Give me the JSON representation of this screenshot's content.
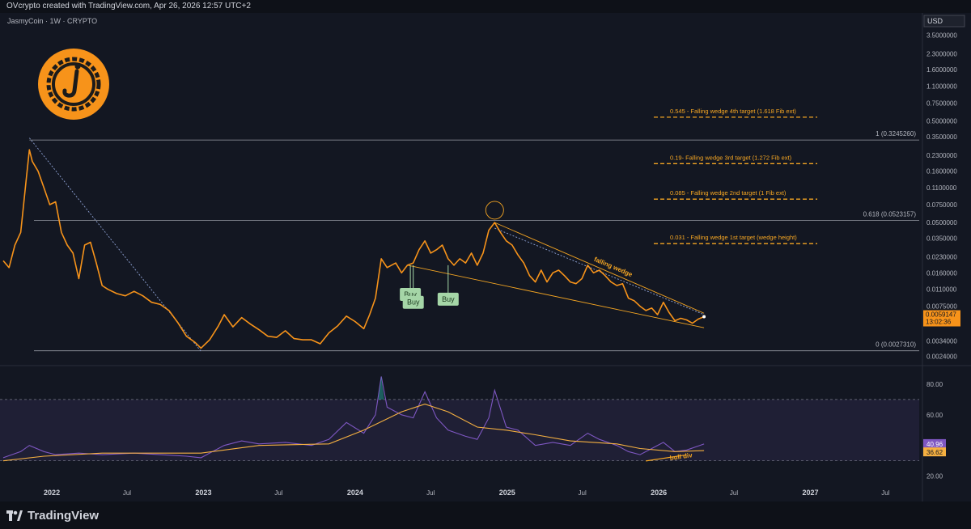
{
  "header": {
    "attribution": "OVcrypto created with TradingView.com, Apr 26, 2026 12:57 UTC+2"
  },
  "symbol": {
    "label": "JasmyCoin · 1W · CRYPTO",
    "currency": "USD"
  },
  "footer": {
    "brand": "TradingView"
  },
  "colors": {
    "background": "#131722",
    "price_line": "#f7931a",
    "rsi_line": "#7e57c2",
    "rsi_ma": "#f5b041",
    "buy_bg": "#a5d6a7",
    "grid_text": "#b2b5be"
  },
  "chart_data": [
    {
      "type": "line",
      "name": "price",
      "scale": "log",
      "ylim": [
        0.0021,
        5.0
      ],
      "xlim": [
        "2021-09-06",
        "2027-09-20"
      ],
      "x_ticks": [
        {
          "date": "2022-01-01",
          "label": "2022",
          "major": true
        },
        {
          "date": "2022-07-01",
          "label": "Jul",
          "major": false
        },
        {
          "date": "2023-01-01",
          "label": "2023",
          "major": true
        },
        {
          "date": "2023-07-01",
          "label": "Jul",
          "major": false
        },
        {
          "date": "2024-01-01",
          "label": "2024",
          "major": true
        },
        {
          "date": "2024-07-01",
          "label": "Jul",
          "major": false
        },
        {
          "date": "2025-01-01",
          "label": "2025",
          "major": true
        },
        {
          "date": "2025-07-01",
          "label": "Jul",
          "major": false
        },
        {
          "date": "2026-01-01",
          "label": "2026",
          "major": true
        },
        {
          "date": "2026-07-01",
          "label": "Jul",
          "major": false
        },
        {
          "date": "2027-01-01",
          "label": "2027",
          "major": true
        },
        {
          "date": "2027-07-01",
          "label": "Jul",
          "major": false
        }
      ],
      "y_ticks": [
        3.5,
        2.3,
        1.6,
        1.1,
        0.75,
        0.5,
        0.35,
        0.23,
        0.16,
        0.11,
        0.075,
        0.05,
        0.035,
        0.023,
        0.016,
        0.011,
        0.0075,
        0.0034,
        0.0024
      ],
      "y_tick_labels": [
        "3.5000000",
        "2.3000000",
        "1.6000000",
        "1.1000000",
        "0.7500000",
        "0.5000000",
        "0.3500000",
        "0.2300000",
        "0.1600000",
        "0.1100000",
        "0.0750000",
        "0.0500000",
        "0.0350000",
        "0.0230000",
        "0.0160000",
        "0.0110000",
        "0.0075000",
        "0.0034000",
        "0.0024000"
      ],
      "points": [
        [
          "2021-09-06",
          0.021
        ],
        [
          "2021-09-20",
          0.018
        ],
        [
          "2021-10-04",
          0.03
        ],
        [
          "2021-10-18",
          0.04
        ],
        [
          "2021-11-01",
          0.14
        ],
        [
          "2021-11-08",
          0.26
        ],
        [
          "2021-11-15",
          0.2
        ],
        [
          "2021-11-29",
          0.16
        ],
        [
          "2021-12-13",
          0.11
        ],
        [
          "2021-12-27",
          0.075
        ],
        [
          "2022-01-10",
          0.08
        ],
        [
          "2022-01-24",
          0.04
        ],
        [
          "2022-02-07",
          0.03
        ],
        [
          "2022-02-21",
          0.025
        ],
        [
          "2022-03-07",
          0.014
        ],
        [
          "2022-03-21",
          0.03
        ],
        [
          "2022-04-04",
          0.032
        ],
        [
          "2022-04-18",
          0.02
        ],
        [
          "2022-05-02",
          0.012
        ],
        [
          "2022-05-16",
          0.011
        ],
        [
          "2022-06-06",
          0.01
        ],
        [
          "2022-06-27",
          0.0095
        ],
        [
          "2022-07-18",
          0.0105
        ],
        [
          "2022-08-08",
          0.0095
        ],
        [
          "2022-08-29",
          0.0082
        ],
        [
          "2022-09-19",
          0.0078
        ],
        [
          "2022-10-10",
          0.0068
        ],
        [
          "2022-10-31",
          0.0052
        ],
        [
          "2022-11-21",
          0.0038
        ],
        [
          "2022-12-12",
          0.0033
        ],
        [
          "2022-12-26",
          0.0029
        ],
        [
          "2023-01-16",
          0.0035
        ],
        [
          "2023-02-06",
          0.0048
        ],
        [
          "2023-02-20",
          0.0062
        ],
        [
          "2023-03-13",
          0.0047
        ],
        [
          "2023-04-03",
          0.0058
        ],
        [
          "2023-04-24",
          0.005
        ],
        [
          "2023-05-15",
          0.0044
        ],
        [
          "2023-06-05",
          0.0038
        ],
        [
          "2023-06-26",
          0.0037
        ],
        [
          "2023-07-17",
          0.0043
        ],
        [
          "2023-08-07",
          0.0036
        ],
        [
          "2023-08-28",
          0.0035
        ],
        [
          "2023-09-18",
          0.0035
        ],
        [
          "2023-10-09",
          0.0032
        ],
        [
          "2023-10-30",
          0.0041
        ],
        [
          "2023-11-20",
          0.0048
        ],
        [
          "2023-12-11",
          0.006
        ],
        [
          "2024-01-01",
          0.0053
        ],
        [
          "2024-01-22",
          0.0045
        ],
        [
          "2024-02-05",
          0.0062
        ],
        [
          "2024-02-19",
          0.009
        ],
        [
          "2024-03-04",
          0.022
        ],
        [
          "2024-03-18",
          0.018
        ],
        [
          "2024-04-08",
          0.02
        ],
        [
          "2024-04-22",
          0.016
        ],
        [
          "2024-05-06",
          0.019
        ],
        [
          "2024-05-20",
          0.02
        ],
        [
          "2024-06-03",
          0.027
        ],
        [
          "2024-06-17",
          0.033
        ],
        [
          "2024-07-01",
          0.025
        ],
        [
          "2024-07-15",
          0.027
        ],
        [
          "2024-07-29",
          0.03
        ],
        [
          "2024-08-12",
          0.022
        ],
        [
          "2024-08-26",
          0.019
        ],
        [
          "2024-09-09",
          0.022
        ],
        [
          "2024-09-23",
          0.02
        ],
        [
          "2024-10-07",
          0.025
        ],
        [
          "2024-10-21",
          0.019
        ],
        [
          "2024-11-04",
          0.025
        ],
        [
          "2024-11-18",
          0.042
        ],
        [
          "2024-12-02",
          0.05
        ],
        [
          "2024-12-16",
          0.04
        ],
        [
          "2024-12-30",
          0.033
        ],
        [
          "2025-01-13",
          0.03
        ],
        [
          "2025-01-27",
          0.024
        ],
        [
          "2025-02-10",
          0.02
        ],
        [
          "2025-02-24",
          0.015
        ],
        [
          "2025-03-10",
          0.013
        ],
        [
          "2025-03-24",
          0.017
        ],
        [
          "2025-04-07",
          0.013
        ],
        [
          "2025-04-21",
          0.016
        ],
        [
          "2025-05-05",
          0.017
        ],
        [
          "2025-05-19",
          0.015
        ],
        [
          "2025-06-02",
          0.013
        ],
        [
          "2025-06-16",
          0.0125
        ],
        [
          "2025-06-30",
          0.014
        ],
        [
          "2025-07-14",
          0.019
        ],
        [
          "2025-07-28",
          0.016
        ],
        [
          "2025-08-11",
          0.017
        ],
        [
          "2025-08-25",
          0.015
        ],
        [
          "2025-09-08",
          0.013
        ],
        [
          "2025-09-22",
          0.012
        ],
        [
          "2025-10-06",
          0.0125
        ],
        [
          "2025-10-20",
          0.009
        ],
        [
          "2025-11-03",
          0.0085
        ],
        [
          "2025-11-17",
          0.0075
        ],
        [
          "2025-12-01",
          0.0068
        ],
        [
          "2025-12-15",
          0.0072
        ],
        [
          "2025-12-29",
          0.0062
        ],
        [
          "2026-01-12",
          0.0082
        ],
        [
          "2026-01-26",
          0.0065
        ],
        [
          "2026-02-09",
          0.0054
        ],
        [
          "2026-02-23",
          0.0057
        ],
        [
          "2026-03-09",
          0.0055
        ],
        [
          "2026-03-23",
          0.0051
        ],
        [
          "2026-04-06",
          0.0056
        ],
        [
          "2026-04-20",
          0.0059147
        ]
      ],
      "last_price": {
        "value": 0.0059147,
        "label": "0.0059147",
        "countdown": "13:02:36"
      },
      "fib_levels": [
        {
          "value": 0.324526,
          "label": "1 (0.3245260)"
        },
        {
          "value": 0.0523157,
          "label": "0.618 (0.0523157)"
        },
        {
          "value": 0.002731,
          "label": "0 (0.0027310)"
        }
      ],
      "targets": [
        {
          "value": 0.545,
          "label": "0.545 - Falling wedge 4th target (1.618 Fib ext)"
        },
        {
          "value": 0.19,
          "label": "0.19- Falling wedge 3rd target (1.272 Fib ext)"
        },
        {
          "value": 0.085,
          "label": "0.085 - Falling wedge 2nd target (1 Fib ext)"
        },
        {
          "value": 0.031,
          "label": "0.031 - Falling wedge 1st target (wedge height)"
        }
      ],
      "trendlines": [
        {
          "kind": "downtrend-dotted",
          "from": [
            "2021-11-08",
            0.34
          ],
          "to": [
            "2022-12-26",
            0.0027
          ]
        },
        {
          "kind": "wedge-upper",
          "from": [
            "2024-12-02",
            0.05
          ],
          "to": [
            "2026-04-20",
            0.0064
          ]
        },
        {
          "kind": "wedge-upper-dotted",
          "from": [
            "2024-12-02",
            0.044
          ],
          "to": [
            "2026-04-20",
            0.0062
          ]
        },
        {
          "kind": "wedge-lower",
          "from": [
            "2024-05-06",
            0.019
          ],
          "to": [
            "2026-04-20",
            0.0046
          ]
        }
      ],
      "annotations": [
        {
          "text": "falling wedge",
          "date": "2025-07-28",
          "value": 0.021,
          "rotate": 23
        },
        {
          "text": "bull div",
          "date": "2026-01-05",
          "value": 0
        }
      ],
      "buy_signals": [
        {
          "text": "Buy",
          "date": "2024-05-13",
          "value": 0.0098
        },
        {
          "text": "Buy",
          "date": "2024-05-20",
          "value": 0.0082
        },
        {
          "text": "Buy",
          "date": "2024-08-12",
          "value": 0.0088
        }
      ],
      "highlight_circle": {
        "date": "2024-12-02",
        "value": 0.055
      }
    },
    {
      "type": "line",
      "name": "RSI",
      "ylim": [
        14,
        90
      ],
      "y_ticks": [
        80,
        60,
        20
      ],
      "y_tick_labels": [
        "80.00",
        "60.00",
        "20.00"
      ],
      "band": [
        30,
        70
      ],
      "rsi_value": {
        "value": 40.96,
        "label": "40.96"
      },
      "ma_value": {
        "value": 36.62,
        "label": "36.62"
      },
      "rsi": [
        [
          "2021-09-06",
          32
        ],
        [
          "2021-10-18",
          36
        ],
        [
          "2021-11-08",
          40
        ],
        [
          "2021-12-13",
          36
        ],
        [
          "2022-01-10",
          34
        ],
        [
          "2022-03-07",
          35
        ],
        [
          "2022-05-02",
          34
        ],
        [
          "2022-07-18",
          35
        ],
        [
          "2022-09-19",
          34
        ],
        [
          "2022-11-21",
          33
        ],
        [
          "2022-12-26",
          32
        ],
        [
          "2023-02-20",
          40
        ],
        [
          "2023-04-03",
          43
        ],
        [
          "2023-05-15",
          41
        ],
        [
          "2023-07-17",
          42
        ],
        [
          "2023-09-18",
          40
        ],
        [
          "2023-10-30",
          44
        ],
        [
          "2023-12-11",
          55
        ],
        [
          "2024-01-22",
          48
        ],
        [
          "2024-02-19",
          60
        ],
        [
          "2024-03-04",
          85
        ],
        [
          "2024-03-18",
          65
        ],
        [
          "2024-04-22",
          60
        ],
        [
          "2024-05-20",
          58
        ],
        [
          "2024-06-17",
          75
        ],
        [
          "2024-07-15",
          58
        ],
        [
          "2024-08-12",
          50
        ],
        [
          "2024-09-23",
          46
        ],
        [
          "2024-10-21",
          44
        ],
        [
          "2024-11-18",
          58
        ],
        [
          "2024-12-02",
          76
        ],
        [
          "2024-12-30",
          52
        ],
        [
          "2025-01-27",
          50
        ],
        [
          "2025-03-10",
          40
        ],
        [
          "2025-04-21",
          42
        ],
        [
          "2025-06-02",
          40
        ],
        [
          "2025-07-14",
          48
        ],
        [
          "2025-08-11",
          44
        ],
        [
          "2025-09-22",
          40
        ],
        [
          "2025-10-20",
          36
        ],
        [
          "2025-11-17",
          34
        ],
        [
          "2025-12-15",
          38
        ],
        [
          "2026-01-12",
          42
        ],
        [
          "2026-02-09",
          36
        ],
        [
          "2026-03-09",
          37
        ],
        [
          "2026-04-20",
          40.96
        ]
      ],
      "ma": [
        [
          "2021-09-06",
          30
        ],
        [
          "2021-12-13",
          33
        ],
        [
          "2022-05-02",
          35
        ],
        [
          "2022-12-26",
          35
        ],
        [
          "2023-05-15",
          40
        ],
        [
          "2023-10-30",
          41
        ],
        [
          "2024-01-22",
          50
        ],
        [
          "2024-04-22",
          62
        ],
        [
          "2024-06-17",
          67
        ],
        [
          "2024-08-12",
          62
        ],
        [
          "2024-10-21",
          52
        ],
        [
          "2024-12-30",
          50
        ],
        [
          "2025-03-10",
          47
        ],
        [
          "2025-06-02",
          43
        ],
        [
          "2025-09-22",
          41
        ],
        [
          "2025-11-17",
          38
        ],
        [
          "2026-02-09",
          36
        ],
        [
          "2026-04-20",
          36.62
        ]
      ],
      "divergence": [
        [
          "2025-12-01",
          32
        ],
        [
          "2026-03-09",
          36
        ]
      ]
    }
  ]
}
